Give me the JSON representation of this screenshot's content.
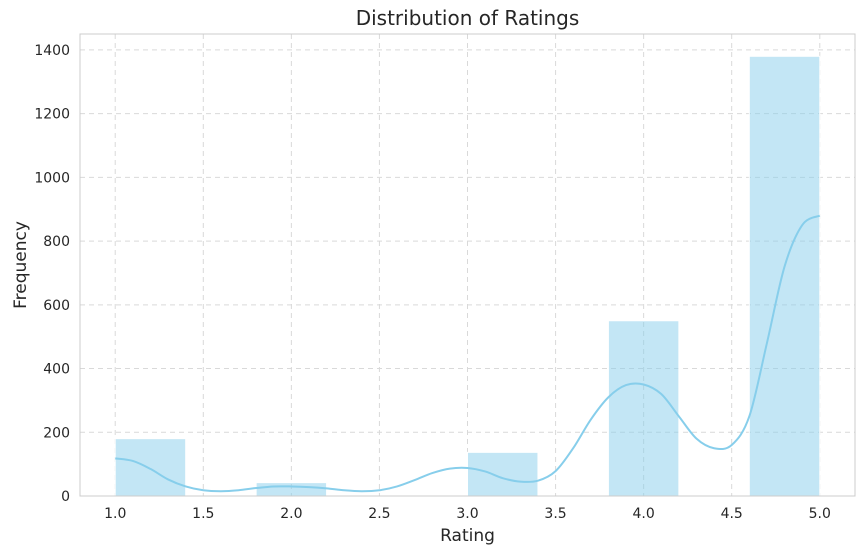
{
  "chart_data": {
    "type": "bar",
    "title": "Distribution of Ratings",
    "xlabel": "Rating",
    "ylabel": "Frequency",
    "xlim": [
      0.8,
      5.2
    ],
    "ylim": [
      0,
      1450
    ],
    "x_ticks": [
      "1.0",
      "1.5",
      "2.0",
      "2.5",
      "3.0",
      "3.5",
      "4.0",
      "4.5",
      "5.0"
    ],
    "y_ticks": [
      "0",
      "200",
      "400",
      "600",
      "800",
      "1000",
      "1200",
      "1400"
    ],
    "grid": true,
    "bins": [
      {
        "start": 1.0,
        "end": 1.4,
        "count": 180
      },
      {
        "start": 1.4,
        "end": 1.8,
        "count": 0
      },
      {
        "start": 1.8,
        "end": 2.2,
        "count": 42
      },
      {
        "start": 2.2,
        "end": 2.6,
        "count": 0
      },
      {
        "start": 2.6,
        "end": 3.0,
        "count": 0
      },
      {
        "start": 3.0,
        "end": 3.4,
        "count": 137
      },
      {
        "start": 3.4,
        "end": 3.8,
        "count": 0
      },
      {
        "start": 3.8,
        "end": 4.2,
        "count": 550
      },
      {
        "start": 4.2,
        "end": 4.6,
        "count": 0
      },
      {
        "start": 4.6,
        "end": 5.0,
        "count": 1380
      }
    ],
    "kde": {
      "x": [
        1.0,
        1.1,
        1.2,
        1.3,
        1.4,
        1.5,
        1.6,
        1.7,
        1.8,
        1.9,
        2.0,
        2.1,
        2.2,
        2.3,
        2.4,
        2.5,
        2.6,
        2.7,
        2.8,
        2.9,
        3.0,
        3.1,
        3.2,
        3.3,
        3.4,
        3.5,
        3.6,
        3.7,
        3.8,
        3.9,
        4.0,
        4.1,
        4.2,
        4.3,
        4.4,
        4.5,
        4.6,
        4.7,
        4.8,
        4.9,
        5.0
      ],
      "y": [
        118,
        110,
        85,
        52,
        30,
        18,
        15,
        18,
        25,
        30,
        30,
        28,
        24,
        18,
        15,
        18,
        30,
        50,
        72,
        86,
        88,
        77,
        56,
        45,
        48,
        78,
        150,
        240,
        310,
        348,
        350,
        320,
        250,
        180,
        150,
        160,
        250,
        480,
        720,
        850,
        880
      ]
    },
    "colors": {
      "bar": "#87ceeb",
      "line": "#87ceeb",
      "grid": "#d9d9d9",
      "spine": "#cccccc",
      "text": "#262626"
    }
  }
}
